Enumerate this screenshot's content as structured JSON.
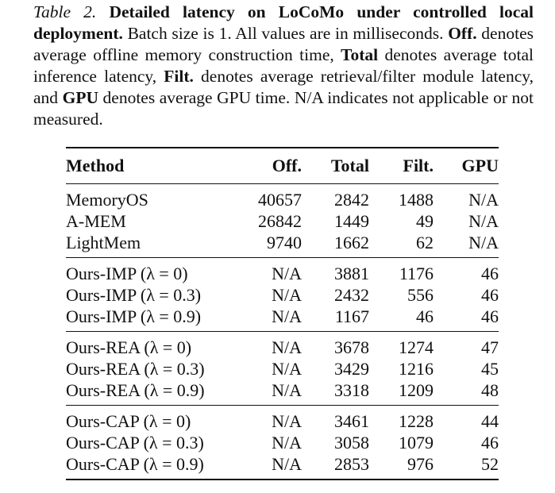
{
  "caption": {
    "label": "Table 2.",
    "title": "Detailed latency on LoCoMo under controlled local deployment.",
    "text1": " Batch size is 1.  All values are in milliseconds. ",
    "off_term": "Off.",
    "text2": " denotes average offline memory construction time, ",
    "total_term": "Total",
    "text3": " denotes average total inference latency, ",
    "filt_term": "Filt.",
    "text4": " denotes average retrieval/filter module latency, and ",
    "gpu_term": "GPU",
    "text5": " denotes average GPU time. N/A indicates not applicable or not measured."
  },
  "table": {
    "headers": [
      "Method",
      "Off.",
      "Total",
      "Filt.",
      "GPU"
    ],
    "groups": [
      {
        "rows": [
          {
            "method": "MemoryOS",
            "off": "40657",
            "total": "2842",
            "filt": "1488",
            "gpu": "N/A"
          },
          {
            "method": "A-MEM",
            "off": "26842",
            "total": "1449",
            "filt": "49",
            "gpu": "N/A"
          },
          {
            "method": "LightMem",
            "off": "9740",
            "total": "1662",
            "filt": "62",
            "gpu": "N/A"
          }
        ]
      },
      {
        "rows": [
          {
            "method": "Ours-IMP (λ = 0)",
            "off": "N/A",
            "total": "3881",
            "filt": "1176",
            "gpu": "46"
          },
          {
            "method": "Ours-IMP (λ = 0.3)",
            "off": "N/A",
            "total": "2432",
            "filt": "556",
            "gpu": "46"
          },
          {
            "method": "Ours-IMP (λ = 0.9)",
            "off": "N/A",
            "total": "1167",
            "filt": "46",
            "gpu": "46"
          }
        ]
      },
      {
        "rows": [
          {
            "method": "Ours-REA (λ = 0)",
            "off": "N/A",
            "total": "3678",
            "filt": "1274",
            "gpu": "47"
          },
          {
            "method": "Ours-REA (λ = 0.3)",
            "off": "N/A",
            "total": "3429",
            "filt": "1216",
            "gpu": "45"
          },
          {
            "method": "Ours-REA (λ = 0.9)",
            "off": "N/A",
            "total": "3318",
            "filt": "1209",
            "gpu": "48"
          }
        ]
      },
      {
        "rows": [
          {
            "method": "Ours-CAP (λ = 0)",
            "off": "N/A",
            "total": "3461",
            "filt": "1228",
            "gpu": "44"
          },
          {
            "method": "Ours-CAP (λ = 0.3)",
            "off": "N/A",
            "total": "3058",
            "filt": "1079",
            "gpu": "46"
          },
          {
            "method": "Ours-CAP (λ = 0.9)",
            "off": "N/A",
            "total": "2853",
            "filt": "976",
            "gpu": "52"
          }
        ]
      }
    ]
  }
}
